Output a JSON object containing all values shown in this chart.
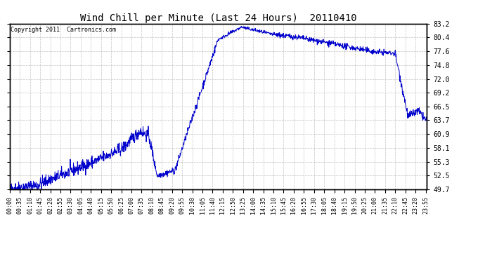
{
  "title": "Wind Chill per Minute (Last 24 Hours)  20110410",
  "copyright": "Copyright 2011  Cartronics.com",
  "yticks": [
    49.7,
    52.5,
    55.3,
    58.1,
    60.9,
    63.7,
    66.5,
    69.2,
    72.0,
    74.8,
    77.6,
    80.4,
    83.2
  ],
  "ymin": 49.7,
  "ymax": 83.2,
  "line_color": "#0000cc",
  "bg_color": "#ffffff",
  "plot_bg_color": "#ffffff",
  "grid_color": "#aaaaaa",
  "xtick_labels": [
    "00:00",
    "00:35",
    "01:10",
    "01:45",
    "02:20",
    "02:55",
    "03:30",
    "04:05",
    "04:40",
    "05:15",
    "05:50",
    "06:25",
    "07:00",
    "07:35",
    "08:10",
    "08:45",
    "09:20",
    "09:55",
    "10:30",
    "11:05",
    "11:40",
    "12:15",
    "12:50",
    "13:25",
    "14:00",
    "14:35",
    "15:10",
    "15:45",
    "16:20",
    "16:55",
    "17:30",
    "18:05",
    "18:40",
    "19:15",
    "19:50",
    "20:25",
    "21:00",
    "21:35",
    "22:10",
    "22:45",
    "23:20",
    "23:55"
  ],
  "num_points": 1440,
  "title_fontsize": 10,
  "tick_fontsize": 7,
  "xtick_fontsize": 6
}
